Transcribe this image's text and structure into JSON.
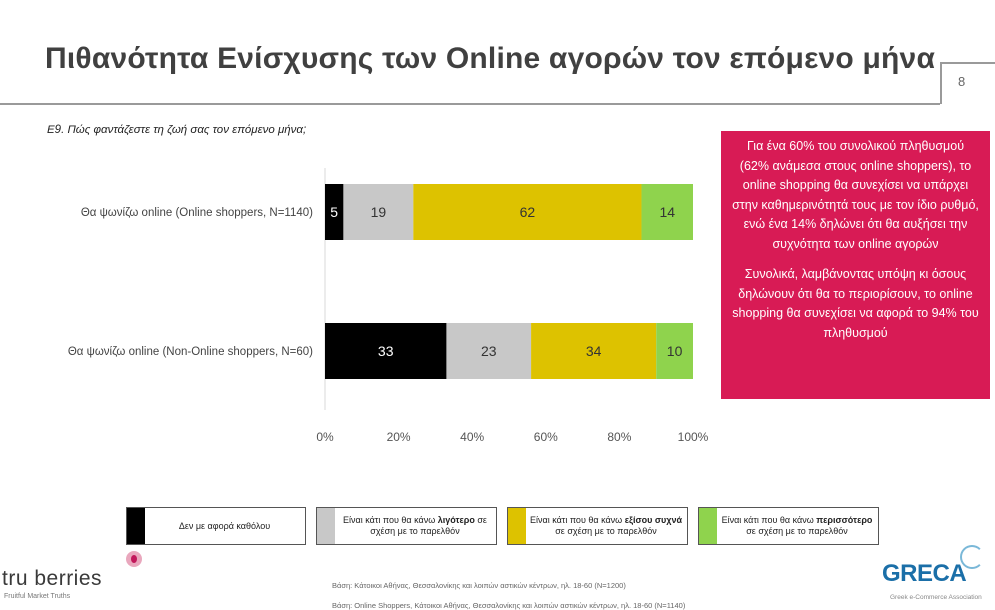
{
  "header": {
    "title": "Πιθανότητα Ενίσχυσης των Online αγορών τον επόμενο μήνα",
    "page_number": "8"
  },
  "question": "Ε9. Πώς φαντάζεστε τη ζωή σας τον επόμενο μήνα;",
  "note": {
    "paragraph1": "Για ένα 60% του συνολικού πληθυσμού (62% ανάμεσα στους online shoppers), το online shopping θα συνεχίσει να υπάρχει στην καθημερινότητά τους με τον ίδιο ρυθμό, ενώ ένα 14% δηλώνει ότι θα αυξήσει την συχνότητα των online αγορών",
    "paragraph2": "Συνολικά, λαμβάνοντας υπόψη κι όσους δηλώνουν ότι θα το περιορίσουν, το online shopping θα συνεχίσει να αφορά το 94% του πληθυσμού"
  },
  "chart_data": {
    "type": "bar",
    "orientation": "horizontal",
    "stacked": true,
    "categories": [
      "Θα ψωνίζω online (Online shoppers, N=1140)",
      "Θα ψωνίζω online (Non-Online shoppers, N=60)"
    ],
    "series": [
      {
        "name": "Δεν με αφορά καθόλου",
        "values": [
          5,
          33
        ],
        "color": "#000000",
        "label_color": "#ffffff"
      },
      {
        "name": "Είναι κάτι που θα κάνω λιγότερο σε σχέση με το παρελθόν",
        "values": [
          19,
          23
        ],
        "color": "#c8c8c8",
        "label_color": "#333333"
      },
      {
        "name": "Είναι κάτι που θα κάνω εξίσου συχνά σε σχέση με το παρελθόν",
        "values": [
          62,
          34
        ],
        "color": "#ddc200",
        "label_color": "#333333"
      },
      {
        "name": "Είναι κάτι που θα κάνω περισσότερο σε σχέση με το παρελθόν",
        "values": [
          14,
          10
        ],
        "color": "#8fd34d",
        "label_color": "#333333"
      }
    ],
    "xlim": [
      0,
      100
    ],
    "ticks": [
      "0%",
      "20%",
      "40%",
      "60%",
      "80%",
      "100%"
    ],
    "grid": false
  },
  "legend": {
    "items": [
      {
        "pre": "Δεν με αφορά καθόλου",
        "bold": "",
        "post": ""
      },
      {
        "pre": "Είναι κάτι που θα κάνω ",
        "bold": "λιγότερο",
        "post": " σε σχέση με το παρελθόν"
      },
      {
        "pre": "Είναι κάτι που θα κάνω ",
        "bold": "εξίσου συχνά",
        "post": " σε σχέση με το παρελθόν"
      },
      {
        "pre": "Είναι κάτι που θα κάνω ",
        "bold": "περισσότερο",
        "post": " σε σχέση με το παρελθόν"
      }
    ]
  },
  "footer": {
    "logo": "tru berries",
    "logo_tagline": "Fruitful Market Truths",
    "base_note_1": "Βάση: Κάτοικοι Αθήνας, Θεσσαλονίκης και λοιπών αστικών κέντρων, ηλ. 18-60 (N=1200)",
    "base_note_2": "Βάση: Online Shoppers, Κάτοικοι Αθήνας, Θεσσαλονίκης και λοιπών αστικών κέντρων, ηλ. 18-60 (N=1140)",
    "greca_logo": "GRECA",
    "greca_tagline": "Greek e-Commerce Association"
  }
}
